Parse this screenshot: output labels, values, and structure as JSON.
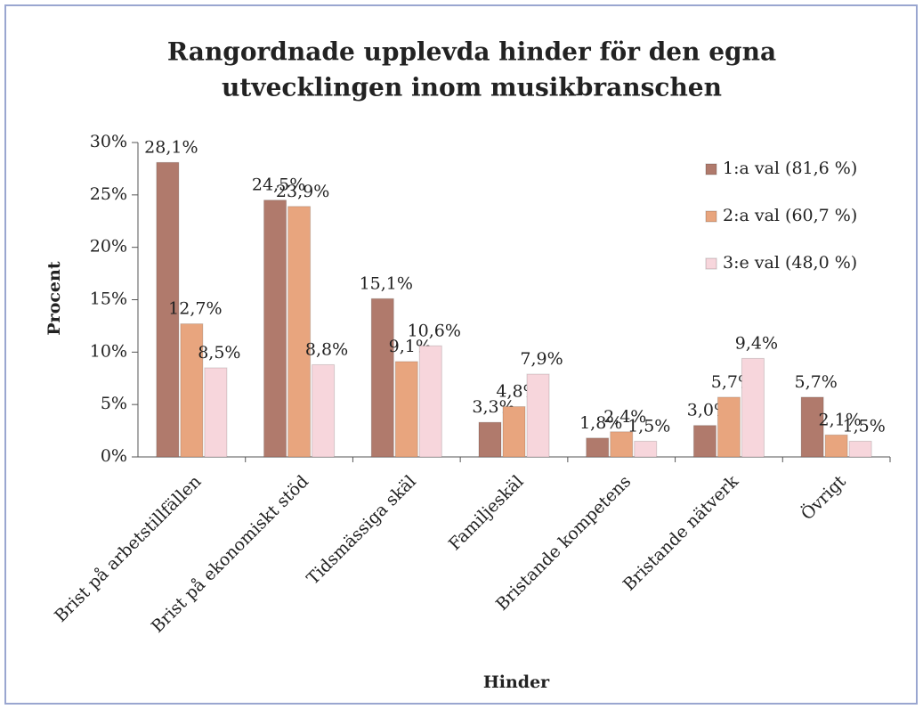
{
  "chart_data": {
    "type": "bar",
    "title": [
      "Rangordnade upplevda hinder för den egna",
      "utvecklingen inom musikbranschen"
    ],
    "x_label": "Hinder",
    "y_label": "Procent",
    "categories": [
      "Brist på arbetstillfällen",
      "Brist på ekonomiskt stöd",
      "Tidsmässiga skäl",
      "Familjeskäl",
      "Bristande kompetens",
      "Bristande nätverk",
      "Övrigt"
    ],
    "series": [
      {
        "name": "1:a val (81,6 %)",
        "color": "#b07a6c",
        "values": [
          28.1,
          24.5,
          15.1,
          3.3,
          1.8,
          3.0,
          5.7
        ],
        "value_labels": [
          "28,1%",
          "24,5%",
          "15,1%",
          "3,3%",
          "1,8%",
          "3,0%",
          "5,7%"
        ]
      },
      {
        "name": "2:a val (60,7 %)",
        "color": "#e8a57e",
        "values": [
          12.7,
          23.9,
          9.1,
          4.8,
          2.4,
          5.7,
          2.1
        ],
        "value_labels": [
          "12,7%",
          "23,9%",
          "9,1%",
          "4,8%",
          "2,4%",
          "5,7%",
          "2,1%"
        ]
      },
      {
        "name": "3:e val (48,0 %)",
        "color": "#f7d6dc",
        "values": [
          8.5,
          8.8,
          10.6,
          7.9,
          1.5,
          9.4,
          1.5
        ],
        "value_labels": [
          "8,5%",
          "8,8%",
          "10,6%",
          "7,9%",
          "1,5%",
          "9,4%",
          "1,5%"
        ]
      }
    ],
    "ylim": [
      0,
      30
    ],
    "yticks": [
      {
        "value": 0,
        "label": "0%"
      },
      {
        "value": 5,
        "label": "5%"
      },
      {
        "value": 10,
        "label": "10%"
      },
      {
        "value": 15,
        "label": "15%"
      },
      {
        "value": 20,
        "label": "20%"
      },
      {
        "value": 25,
        "label": "25%"
      },
      {
        "value": 30,
        "label": "30%"
      }
    ],
    "grid": false,
    "legend": "upper right"
  }
}
